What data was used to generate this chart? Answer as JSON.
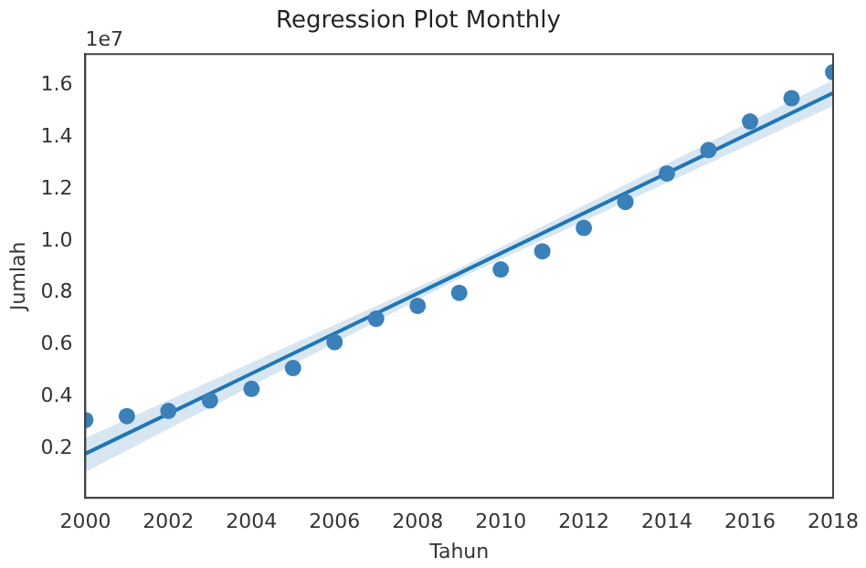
{
  "chart_data": {
    "type": "scatter",
    "title": "Regression Plot Monthly",
    "xlabel": "Tahun",
    "ylabel": "Jumlah",
    "annotations": [
      "1e7"
    ],
    "xlim": [
      2000,
      2018
    ],
    "xticks": [
      2000,
      2002,
      2004,
      2006,
      2008,
      2010,
      2012,
      2014,
      2016,
      2018
    ],
    "ylim": [
      0.01,
      1.72
    ],
    "yticks": [
      {
        "value": 0.2,
        "label": "0.2"
      },
      {
        "value": 0.4,
        "label": "0.4"
      },
      {
        "value": 0.6,
        "label": "0.6"
      },
      {
        "value": 0.8,
        "label": "0.8"
      },
      {
        "value": 1.0,
        "label": "1.0"
      },
      {
        "value": 1.2,
        "label": "1.2"
      },
      {
        "value": 1.4,
        "label": "1.4"
      },
      {
        "value": 1.6,
        "label": "1.6"
      }
    ],
    "grid": false,
    "legend": false,
    "series": [
      {
        "type": "scatter",
        "marker": "circle",
        "color": "#3a80b9",
        "x": [
          2000,
          2001,
          2002,
          2003,
          2004,
          2005,
          2006,
          2007,
          2008,
          2009,
          2010,
          2011,
          2012,
          2013,
          2014,
          2015,
          2016,
          2017,
          2018
        ],
        "values": [
          0.31,
          0.325,
          0.345,
          0.385,
          0.43,
          0.51,
          0.61,
          0.7,
          0.75,
          0.8,
          0.89,
          0.96,
          1.05,
          1.15,
          1.26,
          1.35,
          1.46,
          1.55,
          1.65
        ]
      },
      {
        "type": "line",
        "marker": "none",
        "color": "#1f77b4",
        "x": [
          2000,
          2009,
          2018
        ],
        "values": [
          0.18,
          0.875,
          1.57
        ],
        "lower": [
          0.11,
          0.855,
          1.52
        ],
        "upper": [
          0.24,
          0.895,
          1.62
        ]
      }
    ]
  }
}
